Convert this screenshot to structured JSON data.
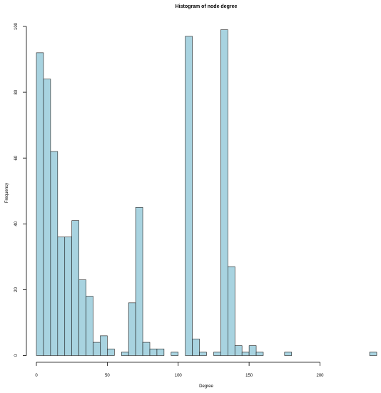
{
  "chart_data": {
    "type": "bar",
    "title": "Histogram of node degree",
    "xlabel": "Degree",
    "ylabel": "Frequency",
    "bin_width": 5,
    "bin_start": 0,
    "xlim": [
      0,
      240
    ],
    "ylim": [
      0,
      100
    ],
    "x_ticks": [
      0,
      50,
      100,
      150,
      200
    ],
    "y_ticks": [
      0,
      20,
      40,
      60,
      80,
      100
    ],
    "bar_color": "#a8d3e0",
    "values": [
      92,
      84,
      62,
      36,
      36,
      41,
      23,
      18,
      4,
      6,
      2,
      0,
      1,
      16,
      45,
      4,
      2,
      2,
      0,
      1,
      0,
      97,
      5,
      1,
      0,
      1,
      99,
      27,
      3,
      1,
      3,
      1,
      0,
      0,
      0,
      1,
      0,
      0,
      0,
      0,
      0,
      0,
      0,
      0,
      0,
      0,
      0,
      1
    ]
  }
}
